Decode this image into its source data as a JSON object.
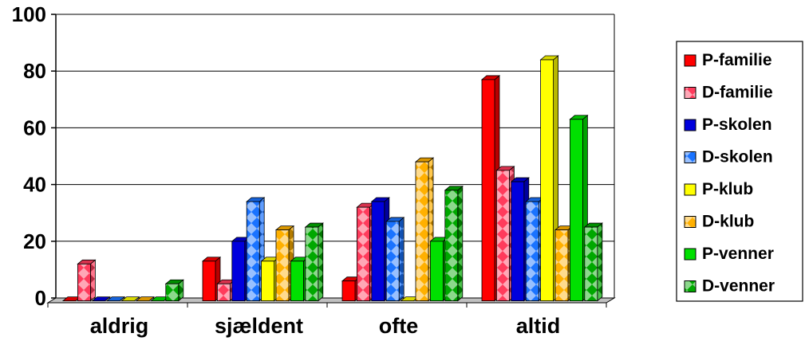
{
  "chart_data": {
    "type": "bar",
    "categories": [
      "aldrig",
      "sjældent",
      "ofte",
      "altid"
    ],
    "ylim": [
      0,
      100
    ],
    "yticks": [
      0,
      20,
      40,
      60,
      80,
      100
    ],
    "grid": true,
    "legend_position": "right",
    "series": [
      {
        "name": "P-familie",
        "color": "#ff0000",
        "pattern": "solid",
        "values": [
          0,
          14,
          7,
          78
        ]
      },
      {
        "name": "D-familie",
        "color": "#ff3b5c",
        "pattern": "diamond",
        "values": [
          13,
          6,
          33,
          46
        ]
      },
      {
        "name": "P-skolen",
        "color": "#0000dd",
        "pattern": "solid",
        "values": [
          0,
          21,
          35,
          42
        ]
      },
      {
        "name": "D-skolen",
        "color": "#1a73ff",
        "pattern": "diamond",
        "values": [
          0,
          35,
          28,
          35
        ]
      },
      {
        "name": "P-klub",
        "color": "#ffff00",
        "pattern": "solid",
        "values": [
          0,
          14,
          0,
          85
        ]
      },
      {
        "name": "D-klub",
        "color": "#ffb000",
        "pattern": "diamond",
        "values": [
          0,
          25,
          49,
          25
        ]
      },
      {
        "name": "P-venner",
        "color": "#00e000",
        "pattern": "solid",
        "values": [
          0,
          14,
          21,
          64
        ]
      },
      {
        "name": "D-venner",
        "color": "#00a800",
        "pattern": "diamond",
        "values": [
          6,
          26,
          39,
          26
        ]
      }
    ]
  }
}
